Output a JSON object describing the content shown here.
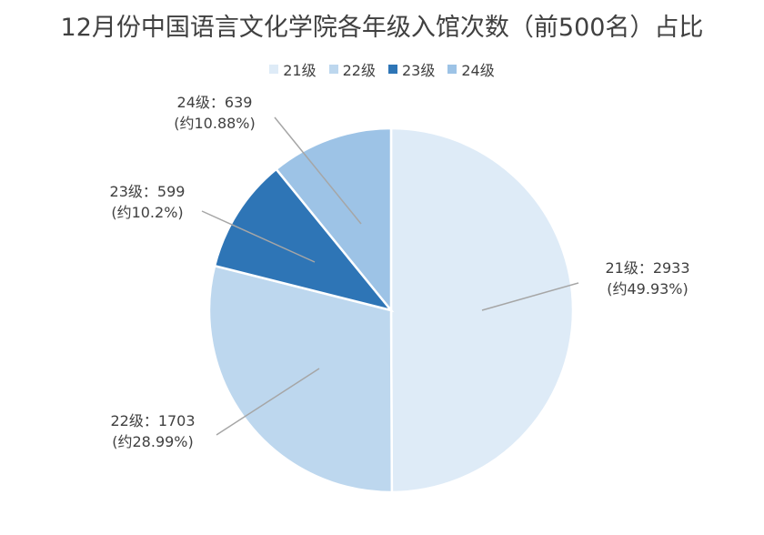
{
  "chart_data": {
    "type": "pie",
    "title": "12月份中国语言文化学院各年级入馆次数（前500名）占比",
    "legend_position": "top",
    "slices": [
      {
        "name": "21级",
        "value": 2933,
        "label_line1": "21级：2933",
        "label_line2": "(约49.93%)",
        "color": "#deebf7"
      },
      {
        "name": "22级",
        "value": 1703,
        "label_line1": "22级：1703",
        "label_line2": "(约28.99%)",
        "color": "#bdd7ee"
      },
      {
        "name": "23级",
        "value": 599,
        "label_line1": "23级：599",
        "label_line2": "(约10.2%)",
        "color": "#2e75b6"
      },
      {
        "name": "24级",
        "value": 639,
        "label_line1": "24级：639",
        "label_line2": "(约10.88%)",
        "color": "#9dc3e6"
      }
    ]
  }
}
